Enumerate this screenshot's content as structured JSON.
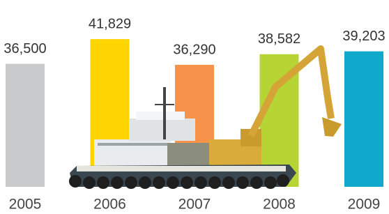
{
  "chart_data": {
    "type": "bar",
    "categories": [
      "2005",
      "2006",
      "2007",
      "2008",
      "2009"
    ],
    "values": [
      36500,
      41829,
      36290,
      38582,
      39203
    ],
    "value_labels": [
      "36,500",
      "41,829",
      "36,290",
      "38,582",
      "39,203"
    ],
    "colors": [
      "#c8cacb",
      "#ffd500",
      "#f7924a",
      "#b6d433",
      "#10a9cb"
    ],
    "ylim": [
      10000,
      42000
    ]
  }
}
